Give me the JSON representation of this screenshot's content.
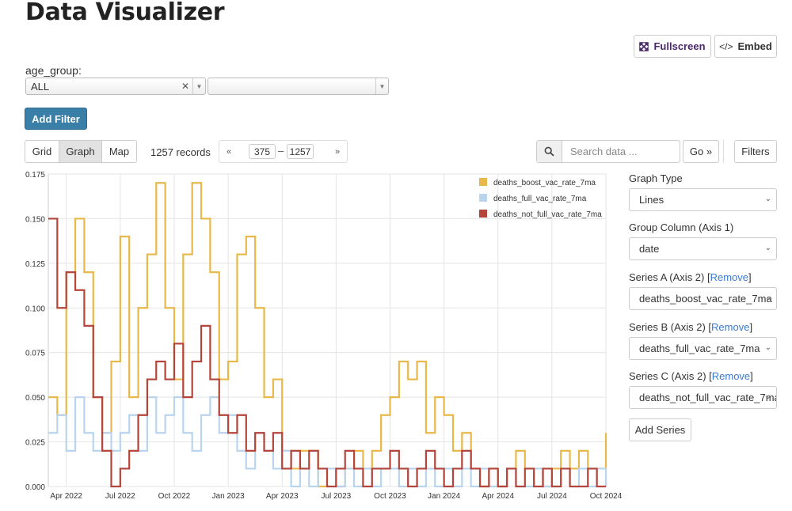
{
  "header": {
    "title": "Data Visualizer",
    "fullscreen_label": "Fullscreen",
    "embed_label": "Embed"
  },
  "filter": {
    "label": "age_group:",
    "value": "ALL",
    "add_filter_label": "Add Filter"
  },
  "toolbar": {
    "tabs": [
      {
        "label": "Grid"
      },
      {
        "label": "Graph"
      },
      {
        "label": "Map"
      }
    ],
    "records": "1257 records",
    "pager": {
      "first": "«",
      "start": "375",
      "dash": "–",
      "end": "1257",
      "last": "»"
    },
    "search_placeholder": "Search data ...",
    "go_label": "Go »",
    "filters_label": "Filters"
  },
  "panel": {
    "graph_type_label": "Graph Type",
    "graph_type_value": "Lines",
    "group_col_label": "Group Column (Axis 1)",
    "group_col_value": "date",
    "series_a_label": "Series A (Axis 2) [",
    "series_a_value": "deaths_boost_vac_rate_7ma",
    "series_b_label": "Series B (Axis 2) [",
    "series_b_value": "deaths_full_vac_rate_7ma",
    "series_c_label": "Series C (Axis 2) [",
    "series_c_value": "deaths_not_full_vac_rate_7ma",
    "remove_label": "Remove",
    "close_bracket": "]",
    "add_series_label": "Add Series"
  },
  "chart_data": {
    "type": "line",
    "ylim": [
      0,
      0.175
    ],
    "yticks": [
      "0.000",
      "0.025",
      "0.050",
      "0.075",
      "0.100",
      "0.125",
      "0.150",
      "0.175"
    ],
    "xlim": [
      0,
      31
    ],
    "xticks": [
      {
        "label": "Apr 2022",
        "x": 1
      },
      {
        "label": "Jul 2022",
        "x": 4
      },
      {
        "label": "Oct 2022",
        "x": 7
      },
      {
        "label": "Jan 2023",
        "x": 10
      },
      {
        "label": "Apr 2023",
        "x": 13
      },
      {
        "label": "Jul 2023",
        "x": 16
      },
      {
        "label": "Oct 2023",
        "x": 19
      },
      {
        "label": "Jan 2024",
        "x": 22
      },
      {
        "label": "Apr 2024",
        "x": 25
      },
      {
        "label": "Jul 2024",
        "x": 28
      },
      {
        "label": "Oct 2024",
        "x": 31
      }
    ],
    "colors": [
      "#e8b84a",
      "#b8d4ef",
      "#b5443a"
    ],
    "series": [
      {
        "name": "deaths_boost_vac_rate_7ma",
        "x": [
          0,
          0.5,
          1,
          1.5,
          2,
          2.5,
          3,
          3.5,
          4,
          4.5,
          5,
          5.5,
          6,
          6.5,
          7,
          7.5,
          8,
          8.5,
          9,
          9.5,
          10,
          10.5,
          11,
          11.5,
          12,
          12.5,
          13,
          13.5,
          14,
          14.5,
          15,
          15.5,
          16,
          16.5,
          17,
          17.5,
          18,
          18.5,
          19,
          19.5,
          20,
          20.5,
          21,
          21.5,
          22,
          22.5,
          23,
          23.5,
          24,
          24.5,
          25,
          25.5,
          26,
          26.5,
          27,
          27.5,
          28,
          28.5,
          29,
          29.5,
          30,
          30.5,
          31
        ],
        "values": [
          0.05,
          0.04,
          0.12,
          0.15,
          0.12,
          0.05,
          0.03,
          0.07,
          0.14,
          0.05,
          0.1,
          0.13,
          0.17,
          0.1,
          0.06,
          0.13,
          0.17,
          0.15,
          0.12,
          0.06,
          0.07,
          0.13,
          0.14,
          0.1,
          0.05,
          0.06,
          0.02,
          0.01,
          0.02,
          0.02,
          0.0,
          0.01,
          0.0,
          0.01,
          0.02,
          0.01,
          0.02,
          0.04,
          0.05,
          0.07,
          0.06,
          0.07,
          0.03,
          0.05,
          0.04,
          0.02,
          0.03,
          0.01,
          0.0,
          0.01,
          0.0,
          0.01,
          0.02,
          0.01,
          0.01,
          0.0,
          0.01,
          0.02,
          0.01,
          0.02,
          0.01,
          0.01,
          0.03
        ]
      },
      {
        "name": "deaths_full_vac_rate_7ma",
        "x": [
          0,
          0.5,
          1,
          1.5,
          2,
          2.5,
          3,
          3.5,
          4,
          4.5,
          5,
          5.5,
          6,
          6.5,
          7,
          7.5,
          8,
          8.5,
          9,
          9.5,
          10,
          10.5,
          11,
          11.5,
          12,
          12.5,
          13,
          13.5,
          14,
          14.5,
          15,
          15.5,
          16,
          16.5,
          17,
          17.5,
          18,
          18.5,
          19,
          19.5,
          20,
          20.5,
          21,
          21.5,
          22,
          22.5,
          23,
          23.5,
          24,
          24.5,
          25,
          25.5,
          26,
          26.5,
          27,
          27.5,
          28,
          28.5,
          29,
          29.5,
          30,
          30.5,
          31
        ],
        "values": [
          0.03,
          0.04,
          0.02,
          0.05,
          0.03,
          0.02,
          0.03,
          0.02,
          0.03,
          0.04,
          0.02,
          0.05,
          0.03,
          0.04,
          0.05,
          0.03,
          0.02,
          0.04,
          0.05,
          0.03,
          0.04,
          0.02,
          0.01,
          0.03,
          0.02,
          0.01,
          0.02,
          0.0,
          0.01,
          0.0,
          0.01,
          0.01,
          0.0,
          0.01,
          0.0,
          0.01,
          0.0,
          0.01,
          0.01,
          0.0,
          0.01,
          0.0,
          0.01,
          0.0,
          0.01,
          0.0,
          0.01,
          0.0,
          0.01,
          0.0,
          0.0,
          0.01,
          0.0,
          0.0,
          0.01,
          0.0,
          0.0,
          0.01,
          0.0,
          0.01,
          0.0,
          0.01,
          0.0
        ]
      },
      {
        "name": "deaths_not_full_vac_rate_7ma",
        "x": [
          0,
          0.5,
          1,
          1.5,
          2,
          2.5,
          3,
          3.5,
          4,
          4.5,
          5,
          5.5,
          6,
          6.5,
          7,
          7.5,
          8,
          8.5,
          9,
          9.5,
          10,
          10.5,
          11,
          11.5,
          12,
          12.5,
          13,
          13.5,
          14,
          14.5,
          15,
          15.5,
          16,
          16.5,
          17,
          17.5,
          18,
          18.5,
          19,
          19.5,
          20,
          20.5,
          21,
          21.5,
          22,
          22.5,
          23,
          23.5,
          24,
          24.5,
          25,
          25.5,
          26,
          26.5,
          27,
          27.5,
          28,
          28.5,
          29,
          29.5,
          30,
          30.5,
          31
        ],
        "values": [
          0.15,
          0.1,
          0.12,
          0.11,
          0.09,
          0.05,
          0.02,
          0.0,
          0.01,
          0.02,
          0.04,
          0.06,
          0.07,
          0.06,
          0.08,
          0.05,
          0.07,
          0.09,
          0.06,
          0.04,
          0.03,
          0.04,
          0.02,
          0.03,
          0.02,
          0.03,
          0.01,
          0.02,
          0.01,
          0.02,
          0.01,
          0.0,
          0.01,
          0.02,
          0.01,
          0.0,
          0.01,
          0.01,
          0.02,
          0.01,
          0.0,
          0.01,
          0.02,
          0.01,
          0.0,
          0.01,
          0.02,
          0.01,
          0.0,
          0.01,
          0.0,
          0.01,
          0.0,
          0.01,
          0.0,
          0.01,
          0.0,
          0.01,
          0.0,
          0.0,
          0.01,
          0.0,
          0.0
        ]
      }
    ]
  }
}
